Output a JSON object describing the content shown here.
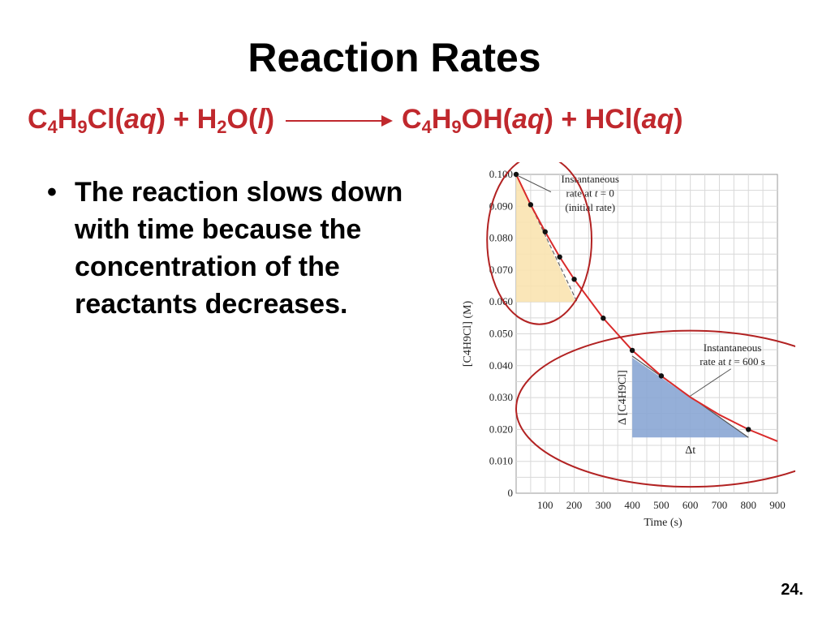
{
  "slide": {
    "title": "Reaction Rates",
    "equation": {
      "r1_c": "C",
      "r1_c_sub": "4",
      "r1_h": "H",
      "r1_h_sub": "9",
      "r1_rest": "Cl(",
      "r1_state": "aq",
      "r1_close": ")",
      "plus1": " + ",
      "r2_h": "H",
      "r2_h_sub": "2",
      "r2_o": "O(",
      "r2_state": "l",
      "r2_close": ")",
      "p1_c": "C",
      "p1_c_sub": "4",
      "p1_h": "H",
      "p1_h_sub": "9",
      "p1_rest": "OH(",
      "p1_state": "aq",
      "p1_close": ")",
      "plus2": " + ",
      "p2_rest": "HCl(",
      "p2_state": "aq",
      "p2_close": ")"
    },
    "bullet_text": "The reaction slows down with time because the concentration of the reactants decreases.",
    "page_number": "24."
  },
  "colors": {
    "equation": "#c0282d",
    "curve": "#d92a2a",
    "circle": "#b22222",
    "initial_triangle": "#f9e3b0",
    "later_triangle": "#8aa6d4"
  },
  "chart_data": {
    "type": "scatter",
    "xlabel": "Time (s)",
    "ylabel": "[C4H9Cl] (M)",
    "xlim": [
      0,
      900
    ],
    "ylim": [
      0,
      0.1
    ],
    "grid": true,
    "x_ticks": [
      "100",
      "200",
      "300",
      "400",
      "500",
      "600",
      "700",
      "800",
      "900"
    ],
    "y_ticks": [
      "0",
      "0.010",
      "0.020",
      "0.030",
      "0.040",
      "0.050",
      "0.060",
      "0.070",
      "0.080",
      "0.090",
      "0.100"
    ],
    "points": [
      {
        "x": 0,
        "y": 0.1
      },
      {
        "x": 50,
        "y": 0.0905
      },
      {
        "x": 100,
        "y": 0.082
      },
      {
        "x": 150,
        "y": 0.0741
      },
      {
        "x": 200,
        "y": 0.0671
      },
      {
        "x": 300,
        "y": 0.0549
      },
      {
        "x": 400,
        "y": 0.0448
      },
      {
        "x": 500,
        "y": 0.0368
      },
      {
        "x": 800,
        "y": 0.02
      }
    ],
    "curve": [
      {
        "x": 0,
        "y": 0.1
      },
      {
        "x": 50,
        "y": 0.0905
      },
      {
        "x": 100,
        "y": 0.082
      },
      {
        "x": 150,
        "y": 0.0741
      },
      {
        "x": 200,
        "y": 0.0671
      },
      {
        "x": 300,
        "y": 0.0549
      },
      {
        "x": 400,
        "y": 0.0448
      },
      {
        "x": 500,
        "y": 0.0368
      },
      {
        "x": 600,
        "y": 0.0301
      },
      {
        "x": 700,
        "y": 0.0246
      },
      {
        "x": 800,
        "y": 0.02
      },
      {
        "x": 900,
        "y": 0.0163
      }
    ],
    "annotations": {
      "initial": {
        "line1": "Instantaneous",
        "line2_a": "rate at ",
        "line2_t": "t",
        "line2_b": " = 0",
        "line3": "(initial rate)",
        "tangent": [
          {
            "x": 0,
            "y": 0.1
          },
          {
            "x": 210,
            "y": 0.06
          }
        ],
        "triangle": [
          {
            "x": 0,
            "y": 0.1
          },
          {
            "x": 0,
            "y": 0.06
          },
          {
            "x": 205,
            "y": 0.06
          }
        ]
      },
      "later": {
        "line1": "Instantaneous",
        "line2_a": "rate at ",
        "line2_t": "t",
        "line2_b": " = 600 s",
        "tangent": [
          {
            "x": 400,
            "y": 0.043
          },
          {
            "x": 800,
            "y": 0.0175
          }
        ],
        "triangle": [
          {
            "x": 400,
            "y": 0.0425
          },
          {
            "x": 400,
            "y": 0.0175
          },
          {
            "x": 800,
            "y": 0.0175
          }
        ],
        "dy_label": "Δ [C4H9Cl]",
        "dx_label": "Δt"
      }
    },
    "circles": [
      {
        "cx": 80,
        "cy": 0.0795,
        "rx_units": 180,
        "ry_units": 0.0265
      },
      {
        "cx": 600,
        "cy": 0.0265,
        "rx_units": 600,
        "ry_units": 0.0245
      }
    ]
  }
}
